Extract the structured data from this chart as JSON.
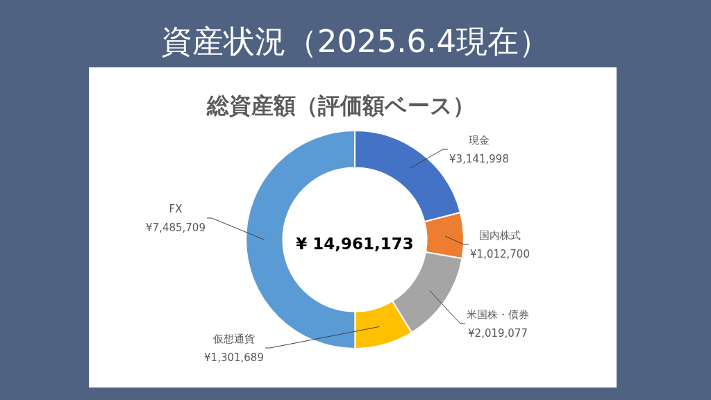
{
  "chart_data": {
    "type": "donut",
    "title": "資産状況（2025.6.4現在）",
    "subtitle": "総資産額（評価額ベース）",
    "categories": [
      "現金",
      "国内株式",
      "米国株・債券",
      "仮想通貨",
      "FX"
    ],
    "values": [
      3141998,
      1012700,
      2019077,
      1301689,
      7485709
    ],
    "colors": [
      "#4472c4",
      "#ed7d31",
      "#a5a5a5",
      "#ffc000",
      "#5b9bd5"
    ],
    "value_labels": [
      "¥3,141,998",
      "¥1,012,700",
      "¥2,019,077",
      "¥1,301,689",
      "¥7,485,709"
    ],
    "annotations": [
      "¥ 14,961,173"
    ]
  }
}
